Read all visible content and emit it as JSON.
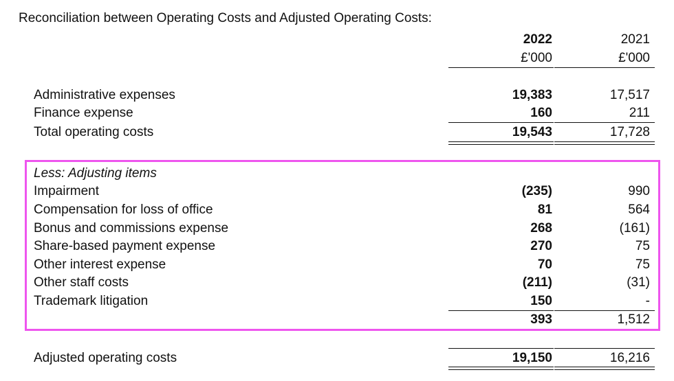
{
  "title": "Reconciliation between Operating Costs and Adjusted Operating Costs:",
  "headers": {
    "year_2022": "2022",
    "unit_2022": "£'000",
    "year_2021": "2021",
    "unit_2021": "£'000"
  },
  "operating": [
    {
      "label": "Administrative expenses",
      "v2022": "19,383",
      "v2021": "17,517"
    },
    {
      "label": "Finance expense",
      "v2022": "160",
      "v2021": "211"
    },
    {
      "label": "Total operating costs",
      "v2022": "19,543",
      "v2021": "17,728"
    }
  ],
  "adjusting": {
    "heading": "Less: Adjusting items",
    "items": [
      {
        "label": "Impairment",
        "v2022": "(235)",
        "v2021": "990"
      },
      {
        "label": "Compensation for loss of office",
        "v2022": "81",
        "v2021": "564"
      },
      {
        "label": "Bonus and commissions expense",
        "v2022": "268",
        "v2021": "(161)"
      },
      {
        "label": "Share-based payment expense",
        "v2022": "270",
        "v2021": "75"
      },
      {
        "label": "Other interest expense",
        "v2022": "70",
        "v2021": "75"
      },
      {
        "label": "Other staff costs",
        "v2022": "(211)",
        "v2021": "(31)"
      },
      {
        "label": "Trademark litigation",
        "v2022": "150",
        "v2021": "-"
      }
    ],
    "total_2022": "393",
    "total_2021": "1,512"
  },
  "adjusted": {
    "label": "Adjusted operating costs",
    "v2022": "19,150",
    "v2021": "16,216"
  },
  "highlight_color": "#ee55ee"
}
